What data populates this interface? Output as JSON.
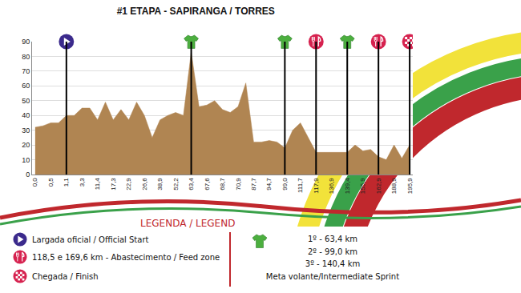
{
  "chart_data": {
    "type": "area",
    "title": "#1 ETAPA - SAPIRANGA / TORRES",
    "categories": [
      "0,0",
      null,
      "0,5",
      null,
      "1,1",
      null,
      "3,3",
      null,
      "11,4",
      null,
      "17,3",
      null,
      "22,9",
      null,
      "26,6",
      null,
      "38,9",
      null,
      "52,2",
      null,
      "63,4",
      null,
      "67,6",
      null,
      "68,7",
      null,
      "70,9",
      null,
      "87,7",
      null,
      "94,7",
      null,
      "99,0",
      null,
      "111,7",
      null,
      "117,9",
      null,
      "136,9",
      null,
      "139,4",
      null,
      "155,9",
      null,
      "162,9",
      null,
      "188,9",
      null,
      "195,9"
    ],
    "values": [
      32,
      33,
      35,
      35,
      40,
      40,
      45,
      45,
      37,
      49,
      37,
      44,
      37,
      49,
      40,
      25,
      37,
      40,
      42,
      40,
      83,
      46,
      47,
      50,
      44,
      42,
      46,
      62,
      22,
      22,
      23,
      22,
      18,
      30,
      35,
      25,
      15,
      15,
      15,
      15,
      15,
      20,
      16,
      17,
      12,
      10,
      20,
      11,
      20
    ],
    "color": "#b08552",
    "ylim": [
      0,
      90
    ],
    "yticks": [
      0,
      10,
      20,
      30,
      40,
      50,
      60,
      70,
      80,
      90
    ],
    "grid": true,
    "legend_title": "LEGENDA / LEGEND",
    "key": [
      {
        "symbol": "start",
        "text": "Largada oficial / Official Start",
        "at": [
          "1,1"
        ]
      },
      {
        "symbol": "feed",
        "text": "118,5  e  169,6 km  -  Abastecimento / Feed zone",
        "at": [
          "117,9",
          "162,9"
        ]
      },
      {
        "symbol": "finish",
        "text": "Chegada / Finish",
        "at": [
          "195,9"
        ]
      },
      {
        "symbol": "sprint",
        "lines": [
          "1º - 63,4 km",
          "2º - 99,0 km",
          "3º - 140,4 km",
          "Meta volante/Intermediate Sprint"
        ],
        "at": [
          "63,4",
          "99,0",
          "139,4"
        ]
      }
    ]
  }
}
